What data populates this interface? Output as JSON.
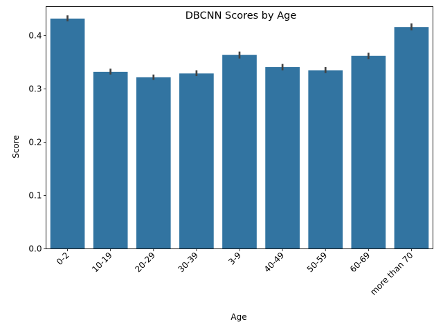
{
  "chart_data": {
    "type": "bar",
    "title": "DBCNN Scores by Age",
    "xlabel": "Age",
    "ylabel": "Score",
    "categories": [
      "0-2",
      "10-19",
      "20-29",
      "30-39",
      "3-9",
      "40-49",
      "50-59",
      "60-69",
      "more than 70"
    ],
    "values": [
      0.432,
      0.332,
      0.322,
      0.329,
      0.364,
      0.341,
      0.335,
      0.362,
      0.416
    ],
    "error_low": [
      0.427,
      0.327,
      0.317,
      0.324,
      0.357,
      0.335,
      0.33,
      0.356,
      0.41
    ],
    "error_high": [
      0.438,
      0.338,
      0.327,
      0.335,
      0.37,
      0.347,
      0.341,
      0.368,
      0.423
    ],
    "yticks": [
      0.0,
      0.1,
      0.2,
      0.3,
      0.4
    ],
    "ytick_labels": [
      "0.0",
      "0.1",
      "0.2",
      "0.3",
      "0.4"
    ],
    "ylim": [
      0,
      0.4545
    ],
    "bar_color": "#3274a1",
    "error_color": "#424242",
    "grid": false,
    "legend": "none"
  }
}
